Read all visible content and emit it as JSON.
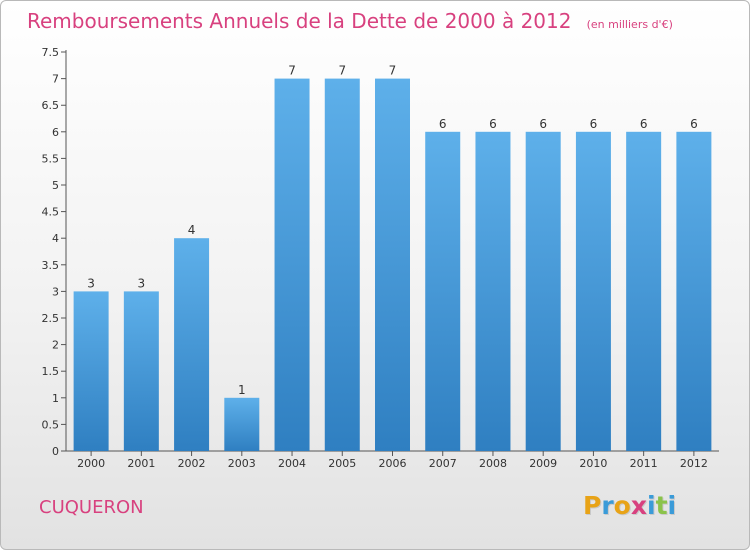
{
  "title": "Remboursements Annuels de la Dette de 2000 à 2012",
  "unit": "(en milliers d'€)",
  "commune": "CUQUERON",
  "logo": {
    "letters": [
      "P",
      "r",
      "o",
      "x",
      "i",
      "t",
      "i"
    ],
    "colors": [
      "#e8a317",
      "#3a9bd8",
      "#e8a317",
      "#d8417f",
      "#3a9bd8",
      "#8bc34a",
      "#3a9bd8"
    ]
  },
  "colors": {
    "bar": "#3b8ed0",
    "bar_light": "#5eb0ea",
    "bar_dark": "#2f7fc1",
    "text": "#d8417f",
    "axis": "#444444"
  },
  "chart_data": {
    "type": "bar",
    "categories": [
      "2000",
      "2001",
      "2002",
      "2003",
      "2004",
      "2005",
      "2006",
      "2007",
      "2008",
      "2009",
      "2010",
      "2011",
      "2012"
    ],
    "values": [
      3,
      3,
      4,
      1,
      7,
      7,
      7,
      6,
      6,
      6,
      6,
      6,
      6
    ],
    "data_labels": [
      "3",
      "3",
      "4",
      "1",
      "7",
      "7",
      "7",
      "6",
      "6",
      "6",
      "6",
      "6",
      "6"
    ],
    "yticks": [
      "0",
      "0.5",
      "1",
      "1.5",
      "2",
      "2.5",
      "3",
      "3.5",
      "4",
      "4.5",
      "5",
      "5.5",
      "6",
      "6.5",
      "7",
      "7.5"
    ],
    "ylim": [
      0,
      7.5
    ],
    "grid": false
  }
}
